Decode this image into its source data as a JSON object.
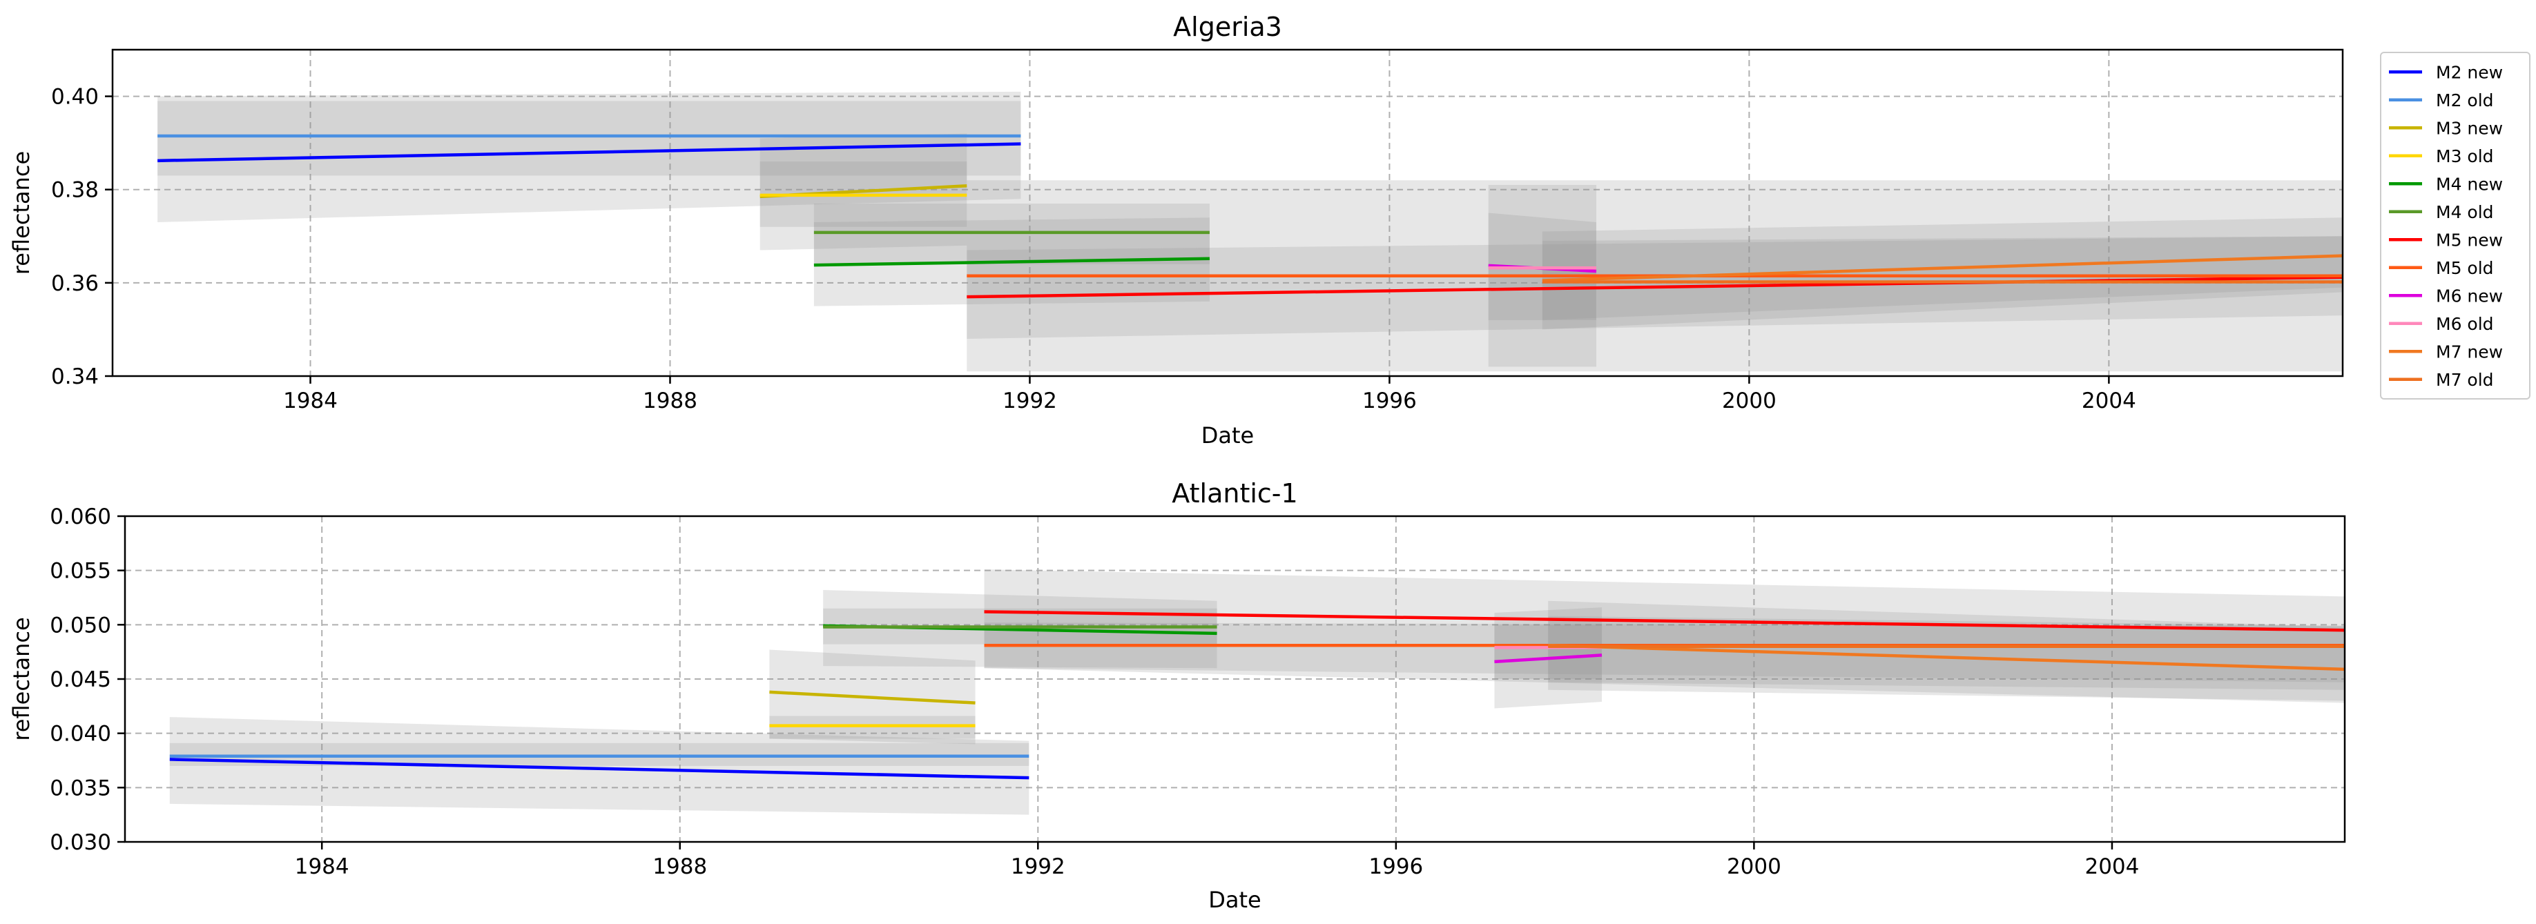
{
  "chart_data": [
    {
      "type": "line",
      "title": "Algeria3",
      "xlabel": "Date",
      "ylabel": "reflectance",
      "xlim": [
        1981.8,
        2006.6
      ],
      "ylim": [
        0.34,
        0.41
      ],
      "xticks": [
        1984,
        1988,
        1992,
        1996,
        2000,
        2004
      ],
      "xtick_labels": [
        "1984",
        "1988",
        "1992",
        "1996",
        "2000",
        "2004"
      ],
      "yticks": [
        0.34,
        0.36,
        0.38,
        0.4
      ],
      "ytick_labels": [
        "0.34",
        "0.36",
        "0.38",
        "0.40"
      ],
      "grid": true,
      "bands": [
        {
          "series": "M2 new",
          "x": [
            1982.3,
            1991.9
          ],
          "lower": [
            0.373,
            0.378
          ],
          "upper": [
            0.4,
            0.401
          ]
        },
        {
          "series": "M2 old",
          "x": [
            1982.3,
            1991.9
          ],
          "lower": [
            0.383,
            0.383
          ],
          "upper": [
            0.399,
            0.399
          ]
        },
        {
          "series": "M3 new",
          "x": [
            1989.0,
            1991.3
          ],
          "lower": [
            0.367,
            0.368
          ],
          "upper": [
            0.391,
            0.392
          ]
        },
        {
          "series": "M3 old",
          "x": [
            1989.0,
            1991.3
          ],
          "lower": [
            0.372,
            0.372
          ],
          "upper": [
            0.386,
            0.386
          ]
        },
        {
          "series": "M4 new",
          "x": [
            1989.6,
            1994.0
          ],
          "lower": [
            0.355,
            0.356
          ],
          "upper": [
            0.373,
            0.374
          ]
        },
        {
          "series": "M4 old",
          "x": [
            1989.6,
            1994.0
          ],
          "lower": [
            0.364,
            0.364
          ],
          "upper": [
            0.377,
            0.377
          ]
        },
        {
          "series": "M5 new",
          "x": [
            1991.3,
            2006.6
          ],
          "lower": [
            0.341,
            0.341
          ],
          "upper": [
            0.382,
            0.382
          ]
        },
        {
          "series": "M5 old",
          "x": [
            1991.3,
            2006.6
          ],
          "lower": [
            0.348,
            0.353
          ],
          "upper": [
            0.367,
            0.37
          ]
        },
        {
          "series": "M6 new",
          "x": [
            1997.1,
            1998.3
          ],
          "lower": [
            0.342,
            0.342
          ],
          "upper": [
            0.381,
            0.381
          ]
        },
        {
          "series": "M6 old",
          "x": [
            1997.1,
            1998.3
          ],
          "lower": [
            0.352,
            0.352
          ],
          "upper": [
            0.375,
            0.373
          ]
        },
        {
          "series": "M7 new",
          "x": [
            1997.7,
            2006.6
          ],
          "lower": [
            0.35,
            0.358
          ],
          "upper": [
            0.371,
            0.374
          ]
        },
        {
          "series": "M7 old",
          "x": [
            1997.7,
            2006.6
          ],
          "lower": [
            0.352,
            0.359
          ],
          "upper": [
            0.369,
            0.37
          ]
        }
      ],
      "series": [
        {
          "name": "M2 new",
          "color": "#0000ff",
          "x": [
            1982.3,
            1991.9
          ],
          "y": [
            0.3862,
            0.3898
          ]
        },
        {
          "name": "M2 old",
          "color": "#4a90e2",
          "x": [
            1982.3,
            1991.9
          ],
          "y": [
            0.3915,
            0.3915
          ]
        },
        {
          "name": "M3 new",
          "color": "#c8b400",
          "x": [
            1989.0,
            1991.3
          ],
          "y": [
            0.3785,
            0.3808
          ]
        },
        {
          "name": "M3 old",
          "color": "#ffd700",
          "x": [
            1989.0,
            1991.3
          ],
          "y": [
            0.3788,
            0.3788
          ]
        },
        {
          "name": "M4 new",
          "color": "#009900",
          "x": [
            1989.6,
            1994.0
          ],
          "y": [
            0.3638,
            0.3652
          ]
        },
        {
          "name": "M4 old",
          "color": "#5a9a28",
          "x": [
            1989.6,
            1994.0
          ],
          "y": [
            0.3708,
            0.3708
          ]
        },
        {
          "name": "M5 new",
          "color": "#ff0000",
          "x": [
            1991.3,
            2006.6
          ],
          "y": [
            0.357,
            0.3612
          ]
        },
        {
          "name": "M5 old",
          "color": "#ff5a14",
          "x": [
            1991.3,
            2006.6
          ],
          "y": [
            0.3615,
            0.3615
          ]
        },
        {
          "name": "M6 new",
          "color": "#dd00dd",
          "x": [
            1997.1,
            1998.3
          ],
          "y": [
            0.3637,
            0.3625
          ]
        },
        {
          "name": "M6 old",
          "color": "#ff88bb",
          "x": [
            1997.1,
            1998.3
          ],
          "y": [
            0.3632,
            0.3632
          ]
        },
        {
          "name": "M7 new",
          "color": "#f07820",
          "x": [
            1997.7,
            2006.6
          ],
          "y": [
            0.3605,
            0.3658
          ]
        },
        {
          "name": "M7 old",
          "color": "#ee7020",
          "x": [
            1997.7,
            2006.6
          ],
          "y": [
            0.3602,
            0.3602
          ]
        }
      ]
    },
    {
      "type": "line",
      "title": "Atlantic-1",
      "xlabel": "Date",
      "ylabel": "reflectance",
      "xlim": [
        1981.8,
        2006.6
      ],
      "ylim": [
        0.03,
        0.06
      ],
      "xticks": [
        1984,
        1988,
        1992,
        1996,
        2000,
        2004
      ],
      "xtick_labels": [
        "1984",
        "1988",
        "1992",
        "1996",
        "2000",
        "2004"
      ],
      "yticks": [
        0.03,
        0.035,
        0.04,
        0.045,
        0.05,
        0.055,
        0.06
      ],
      "ytick_labels": [
        "0.030",
        "0.035",
        "0.040",
        "0.045",
        "0.050",
        "0.055",
        "0.060"
      ],
      "grid": true,
      "bands": [
        {
          "series": "M2 new",
          "x": [
            1982.3,
            1991.9
          ],
          "lower": [
            0.0335,
            0.0325
          ],
          "upper": [
            0.0415,
            0.0393
          ]
        },
        {
          "series": "M2 old",
          "x": [
            1982.3,
            1991.9
          ],
          "lower": [
            0.037,
            0.037
          ],
          "upper": [
            0.0391,
            0.0391
          ]
        },
        {
          "series": "M3 new",
          "x": [
            1989.0,
            1991.3
          ],
          "lower": [
            0.0395,
            0.039
          ],
          "upper": [
            0.0477,
            0.0467
          ]
        },
        {
          "series": "M3 old",
          "x": [
            1989.0,
            1991.3
          ],
          "lower": [
            0.0395,
            0.0395
          ],
          "upper": [
            0.0416,
            0.0416
          ]
        },
        {
          "series": "M4 new",
          "x": [
            1989.6,
            1994.0
          ],
          "lower": [
            0.0462,
            0.046
          ],
          "upper": [
            0.0532,
            0.0522
          ]
        },
        {
          "series": "M4 old",
          "x": [
            1989.6,
            1994.0
          ],
          "lower": [
            0.0482,
            0.0482
          ],
          "upper": [
            0.0515,
            0.0515
          ]
        },
        {
          "series": "M5 new",
          "x": [
            1991.4,
            2006.6
          ],
          "lower": [
            0.046,
            0.0447
          ],
          "upper": [
            0.0551,
            0.0526
          ]
        },
        {
          "series": "M5 old",
          "x": [
            1991.4,
            2006.6
          ],
          "lower": [
            0.046,
            0.0428
          ],
          "upper": [
            0.0502,
            0.0499
          ]
        },
        {
          "series": "M6 new",
          "x": [
            1997.1,
            1998.3
          ],
          "lower": [
            0.0423,
            0.0429
          ],
          "upper": [
            0.0511,
            0.0516
          ]
        },
        {
          "series": "M6 old",
          "x": [
            1997.1,
            1998.3
          ],
          "lower": [
            0.045,
            0.045
          ],
          "upper": [
            0.05,
            0.05
          ]
        },
        {
          "series": "M7 new",
          "x": [
            1997.7,
            2006.6
          ],
          "lower": [
            0.044,
            0.043
          ],
          "upper": [
            0.0522,
            0.0498
          ]
        },
        {
          "series": "M7 old",
          "x": [
            1997.7,
            2006.6
          ],
          "lower": [
            0.0447,
            0.044
          ],
          "upper": [
            0.0508,
            0.0499
          ]
        }
      ],
      "series": [
        {
          "name": "M2 new",
          "color": "#0000ff",
          "x": [
            1982.3,
            1991.9
          ],
          "y": [
            0.0376,
            0.0359
          ]
        },
        {
          "name": "M2 old",
          "color": "#4a90e2",
          "x": [
            1982.3,
            1991.9
          ],
          "y": [
            0.0379,
            0.0379
          ]
        },
        {
          "name": "M3 new",
          "color": "#c8b400",
          "x": [
            1989.0,
            1991.3
          ],
          "y": [
            0.0438,
            0.0428
          ]
        },
        {
          "name": "M3 old",
          "color": "#ffd700",
          "x": [
            1989.0,
            1991.3
          ],
          "y": [
            0.0407,
            0.0407
          ]
        },
        {
          "name": "M4 new",
          "color": "#009900",
          "x": [
            1989.6,
            1994.0
          ],
          "y": [
            0.0499,
            0.0492
          ]
        },
        {
          "name": "M4 old",
          "color": "#5a9a28",
          "x": [
            1989.6,
            1994.0
          ],
          "y": [
            0.0498,
            0.0498
          ]
        },
        {
          "name": "M5 new",
          "color": "#ff0000",
          "x": [
            1991.4,
            2006.6
          ],
          "y": [
            0.0512,
            0.0495
          ]
        },
        {
          "name": "M5 old",
          "color": "#ff5a14",
          "x": [
            1991.4,
            2006.6
          ],
          "y": [
            0.0481,
            0.0481
          ]
        },
        {
          "name": "M6 new",
          "color": "#dd00dd",
          "x": [
            1997.1,
            1998.3
          ],
          "y": [
            0.0466,
            0.0472
          ]
        },
        {
          "name": "M6 old",
          "color": "#ff88bb",
          "x": [
            1997.1,
            1998.3
          ],
          "y": [
            0.0479,
            0.0479
          ]
        },
        {
          "name": "M7 new",
          "color": "#f07820",
          "x": [
            1997.7,
            2006.6
          ],
          "y": [
            0.0481,
            0.0459
          ]
        },
        {
          "name": "M7 old",
          "color": "#ee7020",
          "x": [
            1997.7,
            2006.6
          ],
          "y": [
            0.048,
            0.048
          ]
        }
      ]
    }
  ],
  "legend": {
    "placement": "upper-right-outside",
    "entries": [
      {
        "label": "M2 new",
        "color": "#0000ff"
      },
      {
        "label": "M2 old",
        "color": "#4a90e2"
      },
      {
        "label": "M3 new",
        "color": "#c8b400"
      },
      {
        "label": "M3 old",
        "color": "#ffd700"
      },
      {
        "label": "M4 new",
        "color": "#009900"
      },
      {
        "label": "M4 old",
        "color": "#5a9a28"
      },
      {
        "label": "M5 new",
        "color": "#ff0000"
      },
      {
        "label": "M5 old",
        "color": "#ff5a14"
      },
      {
        "label": "M6 new",
        "color": "#dd00dd"
      },
      {
        "label": "M6 old",
        "color": "#ff88bb"
      },
      {
        "label": "M7 new",
        "color": "#f07820"
      },
      {
        "label": "M7 old",
        "color": "#ee7020"
      }
    ]
  }
}
